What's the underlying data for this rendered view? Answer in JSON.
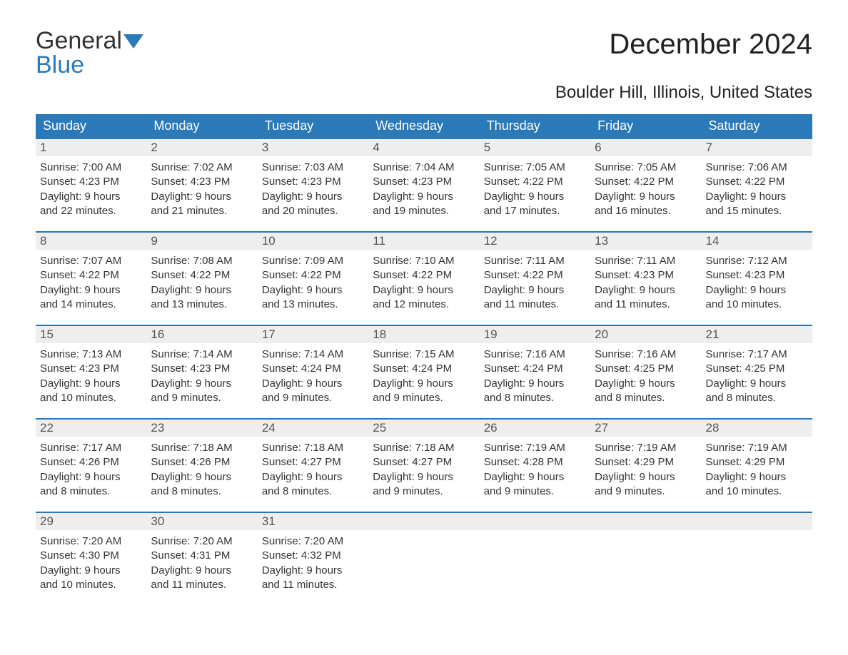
{
  "colors": {
    "header_bg": "#2a7ab9",
    "header_text": "#ffffff",
    "daybar_bg": "#eeeeee",
    "daybar_text": "#555555",
    "body_text": "#333333",
    "week_border": "#2a7ab9",
    "page_bg": "#ffffff",
    "logo_accent": "#2a7ab9"
  },
  "typography": {
    "title_fontsize": 40,
    "location_fontsize": 24,
    "weekday_fontsize": 18,
    "daynum_fontsize": 17,
    "body_fontsize": 15,
    "font_family": "Arial, Helvetica, sans-serif"
  },
  "logo": {
    "part1": "General",
    "part2": "Blue"
  },
  "title": "December 2024",
  "location": "Boulder Hill, Illinois, United States",
  "weekdays": [
    "Sunday",
    "Monday",
    "Tuesday",
    "Wednesday",
    "Thursday",
    "Friday",
    "Saturday"
  ],
  "calendar": {
    "type": "table",
    "columns": 7,
    "rows": 5,
    "labels": {
      "sunrise": "Sunrise:",
      "sunset": "Sunset:",
      "daylight": "Daylight:"
    },
    "weeks": [
      [
        {
          "day": "1",
          "sunrise": "7:00 AM",
          "sunset": "4:23 PM",
          "daylight_l1": "9 hours",
          "daylight_l2": "and 22 minutes."
        },
        {
          "day": "2",
          "sunrise": "7:02 AM",
          "sunset": "4:23 PM",
          "daylight_l1": "9 hours",
          "daylight_l2": "and 21 minutes."
        },
        {
          "day": "3",
          "sunrise": "7:03 AM",
          "sunset": "4:23 PM",
          "daylight_l1": "9 hours",
          "daylight_l2": "and 20 minutes."
        },
        {
          "day": "4",
          "sunrise": "7:04 AM",
          "sunset": "4:23 PM",
          "daylight_l1": "9 hours",
          "daylight_l2": "and 19 minutes."
        },
        {
          "day": "5",
          "sunrise": "7:05 AM",
          "sunset": "4:22 PM",
          "daylight_l1": "9 hours",
          "daylight_l2": "and 17 minutes."
        },
        {
          "day": "6",
          "sunrise": "7:05 AM",
          "sunset": "4:22 PM",
          "daylight_l1": "9 hours",
          "daylight_l2": "and 16 minutes."
        },
        {
          "day": "7",
          "sunrise": "7:06 AM",
          "sunset": "4:22 PM",
          "daylight_l1": "9 hours",
          "daylight_l2": "and 15 minutes."
        }
      ],
      [
        {
          "day": "8",
          "sunrise": "7:07 AM",
          "sunset": "4:22 PM",
          "daylight_l1": "9 hours",
          "daylight_l2": "and 14 minutes."
        },
        {
          "day": "9",
          "sunrise": "7:08 AM",
          "sunset": "4:22 PM",
          "daylight_l1": "9 hours",
          "daylight_l2": "and 13 minutes."
        },
        {
          "day": "10",
          "sunrise": "7:09 AM",
          "sunset": "4:22 PM",
          "daylight_l1": "9 hours",
          "daylight_l2": "and 13 minutes."
        },
        {
          "day": "11",
          "sunrise": "7:10 AM",
          "sunset": "4:22 PM",
          "daylight_l1": "9 hours",
          "daylight_l2": "and 12 minutes."
        },
        {
          "day": "12",
          "sunrise": "7:11 AM",
          "sunset": "4:22 PM",
          "daylight_l1": "9 hours",
          "daylight_l2": "and 11 minutes."
        },
        {
          "day": "13",
          "sunrise": "7:11 AM",
          "sunset": "4:23 PM",
          "daylight_l1": "9 hours",
          "daylight_l2": "and 11 minutes."
        },
        {
          "day": "14",
          "sunrise": "7:12 AM",
          "sunset": "4:23 PM",
          "daylight_l1": "9 hours",
          "daylight_l2": "and 10 minutes."
        }
      ],
      [
        {
          "day": "15",
          "sunrise": "7:13 AM",
          "sunset": "4:23 PM",
          "daylight_l1": "9 hours",
          "daylight_l2": "and 10 minutes."
        },
        {
          "day": "16",
          "sunrise": "7:14 AM",
          "sunset": "4:23 PM",
          "daylight_l1": "9 hours",
          "daylight_l2": "and 9 minutes."
        },
        {
          "day": "17",
          "sunrise": "7:14 AM",
          "sunset": "4:24 PM",
          "daylight_l1": "9 hours",
          "daylight_l2": "and 9 minutes."
        },
        {
          "day": "18",
          "sunrise": "7:15 AM",
          "sunset": "4:24 PM",
          "daylight_l1": "9 hours",
          "daylight_l2": "and 9 minutes."
        },
        {
          "day": "19",
          "sunrise": "7:16 AM",
          "sunset": "4:24 PM",
          "daylight_l1": "9 hours",
          "daylight_l2": "and 8 minutes."
        },
        {
          "day": "20",
          "sunrise": "7:16 AM",
          "sunset": "4:25 PM",
          "daylight_l1": "9 hours",
          "daylight_l2": "and 8 minutes."
        },
        {
          "day": "21",
          "sunrise": "7:17 AM",
          "sunset": "4:25 PM",
          "daylight_l1": "9 hours",
          "daylight_l2": "and 8 minutes."
        }
      ],
      [
        {
          "day": "22",
          "sunrise": "7:17 AM",
          "sunset": "4:26 PM",
          "daylight_l1": "9 hours",
          "daylight_l2": "and 8 minutes."
        },
        {
          "day": "23",
          "sunrise": "7:18 AM",
          "sunset": "4:26 PM",
          "daylight_l1": "9 hours",
          "daylight_l2": "and 8 minutes."
        },
        {
          "day": "24",
          "sunrise": "7:18 AM",
          "sunset": "4:27 PM",
          "daylight_l1": "9 hours",
          "daylight_l2": "and 8 minutes."
        },
        {
          "day": "25",
          "sunrise": "7:18 AM",
          "sunset": "4:27 PM",
          "daylight_l1": "9 hours",
          "daylight_l2": "and 9 minutes."
        },
        {
          "day": "26",
          "sunrise": "7:19 AM",
          "sunset": "4:28 PM",
          "daylight_l1": "9 hours",
          "daylight_l2": "and 9 minutes."
        },
        {
          "day": "27",
          "sunrise": "7:19 AM",
          "sunset": "4:29 PM",
          "daylight_l1": "9 hours",
          "daylight_l2": "and 9 minutes."
        },
        {
          "day": "28",
          "sunrise": "7:19 AM",
          "sunset": "4:29 PM",
          "daylight_l1": "9 hours",
          "daylight_l2": "and 10 minutes."
        }
      ],
      [
        {
          "day": "29",
          "sunrise": "7:20 AM",
          "sunset": "4:30 PM",
          "daylight_l1": "9 hours",
          "daylight_l2": "and 10 minutes."
        },
        {
          "day": "30",
          "sunrise": "7:20 AM",
          "sunset": "4:31 PM",
          "daylight_l1": "9 hours",
          "daylight_l2": "and 11 minutes."
        },
        {
          "day": "31",
          "sunrise": "7:20 AM",
          "sunset": "4:32 PM",
          "daylight_l1": "9 hours",
          "daylight_l2": "and 11 minutes."
        },
        {
          "empty": true
        },
        {
          "empty": true
        },
        {
          "empty": true
        },
        {
          "empty": true
        }
      ]
    ]
  }
}
